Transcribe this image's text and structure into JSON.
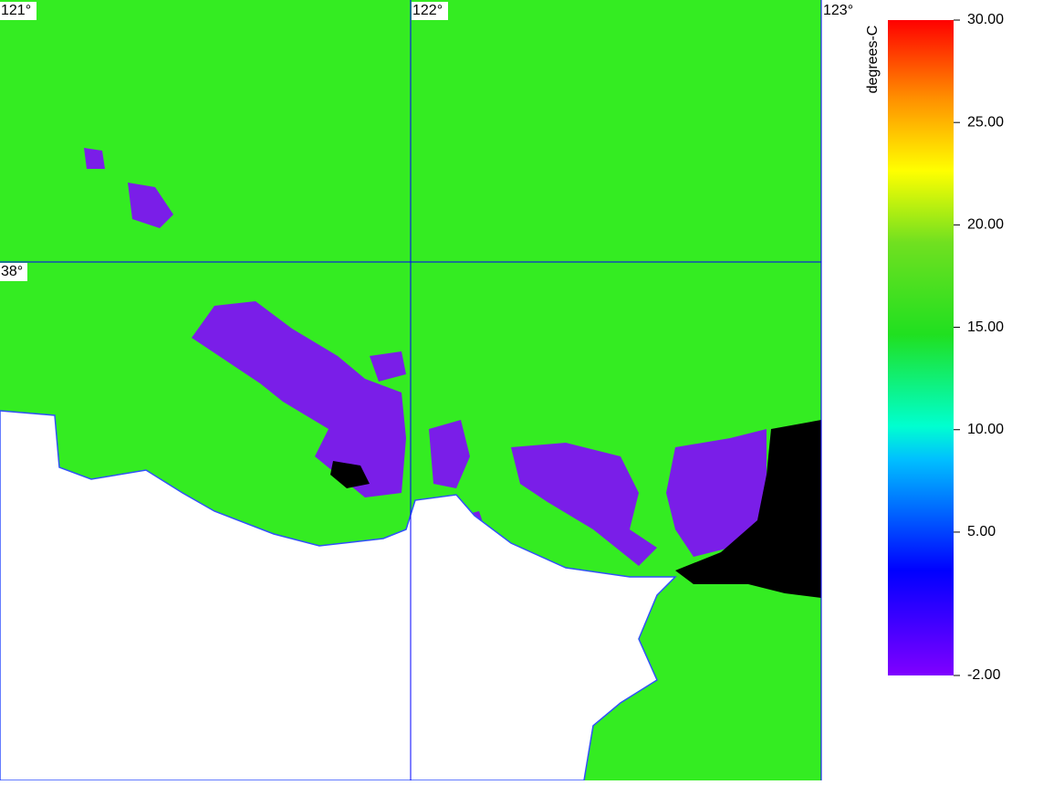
{
  "map": {
    "longitude_labels": [
      "121°",
      "122°",
      "123°"
    ],
    "latitude_labels": [
      "38°"
    ],
    "colorbar": {
      "label": "degrees-C",
      "lim": [
        -2,
        30
      ],
      "ticks": [
        {
          "value": 30,
          "label": "30.00"
        },
        {
          "value": 25,
          "label": "25.00"
        },
        {
          "value": 20,
          "label": "20.00"
        },
        {
          "value": 15,
          "label": "15.00"
        },
        {
          "value": 10,
          "label": "10.00"
        },
        {
          "value": 5,
          "label": "5.00"
        },
        {
          "value": -2,
          "label": "-2.00"
        }
      ]
    }
  }
}
